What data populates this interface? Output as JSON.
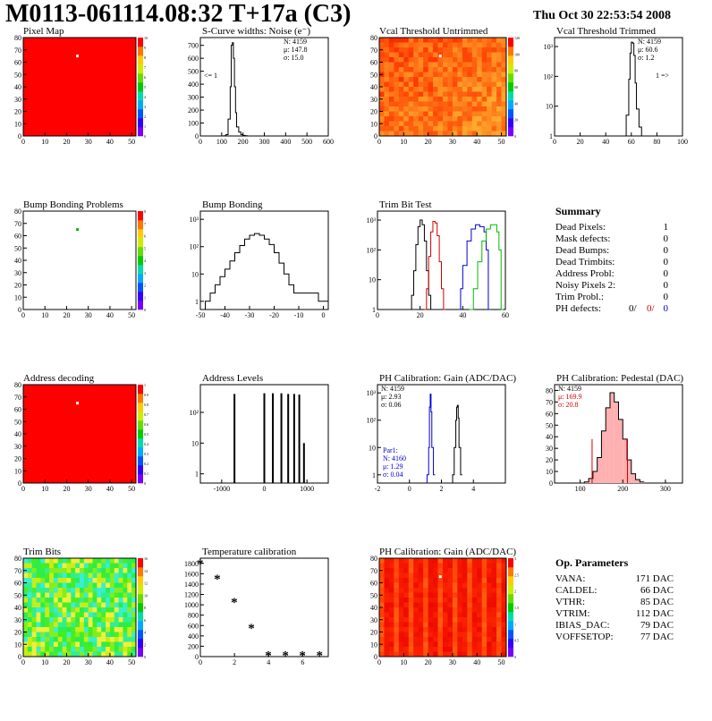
{
  "header": {
    "title": "M0113-061114.08:32 T+17a (C3)",
    "date": "Thu Oct 30 22:53:54 2008"
  },
  "colors": {
    "black": "#000000",
    "red": "#d00000",
    "blue": "#0000cc",
    "green": "#00bb00"
  },
  "panels": {
    "pixel_map": {
      "title": "Pixel Map",
      "palette_labels": [
        "0",
        "1",
        "2",
        "3",
        "4",
        "5",
        "6",
        "7",
        "8",
        "9",
        "10"
      ]
    },
    "scurve": {
      "title": "S-Curve widths: Noise (e⁻)",
      "stats": [
        "N: 4159",
        "μ: 147.8",
        "σ: 15.0"
      ],
      "underflow": "<= 1"
    },
    "vcal_untrimmed": {
      "title": "Vcal Threshold Untrimmed",
      "palette_labels": [
        "0",
        "20",
        "40",
        "60",
        "80",
        "100",
        "120"
      ]
    },
    "vcal_trimmed": {
      "title": "Vcal Threshold Trimmed",
      "stats": [
        "N: 4159",
        "μ: 60.6",
        "σ:  1.2"
      ],
      "overflow": "1 =>"
    },
    "bump_problems": {
      "title": "Bump Bonding Problems",
      "palette_labels": [
        "0",
        "1",
        "2",
        "3",
        "4",
        "5",
        "6",
        "7",
        "8"
      ]
    },
    "bump_bonding": {
      "title": "Bump Bonding"
    },
    "trim_bit": {
      "title": "Trim Bit Test"
    },
    "address_decoding": {
      "title": "Address decoding",
      "palette_labels": [
        "0",
        "0.1",
        "0.2",
        "0.3",
        "0.4",
        "0.5",
        "0.6",
        "0.7",
        "0.8",
        "0.9",
        "1"
      ]
    },
    "address_levels": {
      "title": "Address Levels"
    },
    "ph_gain": {
      "title": "PH Calibration: Gain (ADC/DAC)",
      "stats": [
        "N: 4159",
        "μ: 2.93",
        "σ: 0.06"
      ],
      "par_stats": [
        "Par1:",
        "N: 4160",
        "μ: 1.29",
        "σ: 0.04"
      ]
    },
    "ph_pedestal": {
      "title": "PH Calibration: Pedestal (DAC)",
      "stats": [
        "N: 4159",
        "μ: 169.9",
        "σ: 20.8"
      ]
    },
    "trim_bits": {
      "title": "Trim Bits",
      "palette_labels": [
        "0",
        "2",
        "4",
        "6",
        "8",
        "10",
        "12",
        "14",
        "16"
      ]
    },
    "temperature": {
      "title": "Temperature calibration"
    },
    "ph_gain_map": {
      "title": "PH Calibration: Gain (ADC/DAC)",
      "palette_labels": [
        "0",
        "0.5",
        "1",
        "1.5",
        "2",
        "2.5",
        "3"
      ]
    }
  },
  "summary": {
    "title": "Summary",
    "rows": [
      {
        "label": "Dead Pixels:",
        "value": "1"
      },
      {
        "label": "Mask defects:",
        "value": "0"
      },
      {
        "label": "Dead Bumps:",
        "value": "0"
      },
      {
        "label": "Dead Trimbits:",
        "value": "0"
      },
      {
        "label": "Address Probl:",
        "value": "0"
      },
      {
        "label": "Noisy Pixels 2:",
        "value": "0"
      },
      {
        "label": "Trim Probl.:",
        "value": "0"
      }
    ],
    "ph_label": "PH defects:",
    "ph_values": [
      "0/",
      "0/",
      "0"
    ]
  },
  "parameters": {
    "title": "Op. Parameters",
    "rows": [
      {
        "label": "VANA:",
        "value": "171 DAC"
      },
      {
        "label": "CALDEL:",
        "value": "66 DAC"
      },
      {
        "label": "VTHR:",
        "value": "85 DAC"
      },
      {
        "label": "VTRIM:",
        "value": "112 DAC"
      },
      {
        "label": "IBIAS_DAC:",
        "value": "79 DAC"
      },
      {
        "label": "VOFFSETOP:",
        "value": "77 DAC"
      }
    ]
  },
  "chart_data": [
    {
      "id": "pixel_map",
      "type": "heatmap",
      "title": "Pixel Map",
      "x_ticks": [
        0,
        10,
        20,
        30,
        40,
        50
      ],
      "y_ticks": [
        0,
        10,
        20,
        30,
        40,
        50,
        60,
        70,
        80
      ],
      "xlim": [
        0,
        52
      ],
      "ylim": [
        0,
        80
      ],
      "z_range": [
        0,
        10
      ],
      "fill": "uniform red (all pixels = 10)",
      "markers": [
        {
          "x": 25,
          "y": 65,
          "color": "#ffffff"
        }
      ]
    },
    {
      "id": "scurve",
      "type": "histogram",
      "title": "S-Curve widths: Noise (e⁻)",
      "x_ticks": [
        0,
        100,
        200,
        300,
        400,
        500,
        600
      ],
      "y_ticks": [
        0,
        100,
        200,
        300,
        400,
        500,
        600,
        700
      ],
      "xlim": [
        0,
        600
      ],
      "ylim": [
        0,
        760
      ],
      "x": [
        100,
        110,
        120,
        130,
        140,
        145,
        150,
        155,
        160,
        165,
        170,
        180,
        190,
        200,
        210,
        220
      ],
      "values": [
        0,
        2,
        10,
        130,
        380,
        700,
        720,
        600,
        380,
        180,
        70,
        30,
        10,
        4,
        2,
        0
      ]
    },
    {
      "id": "vcal_untrimmed",
      "type": "heatmap",
      "title": "Vcal Threshold Untrimmed",
      "x_ticks": [
        0,
        10,
        20,
        30,
        40,
        50
      ],
      "y_ticks": [
        0,
        10,
        20,
        30,
        40,
        50,
        60,
        70,
        80
      ],
      "xlim": [
        0,
        52
      ],
      "ylim": [
        0,
        80
      ],
      "z_range": [
        0,
        130
      ],
      "fill": "noisy orange-red, lighter toward upper right",
      "markers": [
        {
          "x": 25,
          "y": 65,
          "color": "#ffffff"
        }
      ]
    },
    {
      "id": "vcal_trimmed",
      "type": "histogram",
      "title": "Vcal Threshold Trimmed",
      "log_y": true,
      "x_ticks": [
        0,
        20,
        40,
        60,
        80,
        100
      ],
      "y_ticks": [
        "1",
        "10",
        "10²",
        "10³"
      ],
      "xlim": [
        0,
        100
      ],
      "ylim": [
        1,
        2000
      ],
      "x": [
        54,
        56,
        58,
        59,
        60,
        61,
        62,
        63,
        64,
        66,
        68
      ],
      "values": [
        1,
        5,
        80,
        600,
        1400,
        1300,
        500,
        60,
        8,
        2,
        1
      ]
    },
    {
      "id": "bump_problems",
      "type": "heatmap",
      "title": "Bump Bonding Problems",
      "x_ticks": [
        0,
        10,
        20,
        30,
        40,
        50
      ],
      "y_ticks": [
        0,
        10,
        20,
        30,
        40,
        50,
        60,
        70,
        80
      ],
      "xlim": [
        0,
        52
      ],
      "ylim": [
        0,
        80
      ],
      "fill": "white",
      "markers": [
        {
          "x": 25,
          "y": 65,
          "color": "#00bb00"
        }
      ]
    },
    {
      "id": "bump_bonding",
      "type": "histogram",
      "title": "Bump Bonding",
      "log_y": true,
      "x_ticks": [
        -50,
        -40,
        -30,
        -20,
        -10,
        0
      ],
      "y_ticks": [
        "1",
        "10",
        "10²",
        "10³"
      ],
      "xlim": [
        -50,
        2
      ],
      "ylim": [
        0.5,
        2000
      ],
      "x": [
        -48,
        -46,
        -44,
        -42,
        -40,
        -38,
        -36,
        -34,
        -32,
        -30,
        -28,
        -26,
        -24,
        -22,
        -20,
        -18,
        -16,
        -14,
        -12,
        -2,
        0
      ],
      "values": [
        1,
        2,
        4,
        8,
        15,
        30,
        60,
        110,
        190,
        260,
        300,
        260,
        190,
        120,
        60,
        25,
        10,
        4,
        2,
        1,
        1
      ]
    },
    {
      "id": "trim_bit",
      "type": "line",
      "title": "Trim Bit Test",
      "log_y": true,
      "x_ticks": [
        0,
        20,
        40,
        60
      ],
      "y_ticks": [
        "1",
        "10",
        "10²",
        "10³"
      ],
      "xlim": [
        0,
        60
      ],
      "ylim": [
        1,
        2000
      ],
      "series": [
        {
          "color": "#000000",
          "x": [
            15,
            16,
            17,
            18,
            19,
            20,
            21,
            22,
            23,
            24,
            25
          ],
          "values": [
            1,
            3,
            20,
            150,
            600,
            1000,
            700,
            200,
            20,
            3,
            1
          ]
        },
        {
          "color": "#d00000",
          "x": [
            22,
            23,
            24,
            25,
            26,
            27,
            28,
            29,
            30,
            31
          ],
          "values": [
            1,
            5,
            60,
            400,
            900,
            800,
            300,
            40,
            5,
            1
          ]
        },
        {
          "color": "#0000cc",
          "x": [
            38,
            39,
            40,
            42,
            44,
            46,
            48,
            50,
            51,
            52
          ],
          "values": [
            1,
            5,
            30,
            200,
            500,
            700,
            600,
            400,
            100,
            1
          ]
        },
        {
          "color": "#00bb00",
          "x": [
            43,
            45,
            47,
            49,
            51,
            53,
            55,
            56,
            57,
            58
          ],
          "values": [
            1,
            5,
            40,
            200,
            500,
            700,
            700,
            400,
            100,
            1
          ]
        }
      ]
    },
    {
      "id": "address_decoding",
      "type": "heatmap",
      "title": "Address decoding",
      "x_ticks": [
        0,
        10,
        20,
        30,
        40,
        50
      ],
      "y_ticks": [
        0,
        10,
        20,
        30,
        40,
        50,
        60,
        70,
        80
      ],
      "xlim": [
        0,
        52
      ],
      "ylim": [
        0,
        80
      ],
      "z_range": [
        0,
        1
      ],
      "fill": "uniform red (all pixels = 1)",
      "markers": [
        {
          "x": 25,
          "y": 65,
          "color": "#ffffff"
        }
      ]
    },
    {
      "id": "address_levels",
      "type": "histogram",
      "title": "Address Levels",
      "log_y": true,
      "x_ticks": [
        -1000,
        0,
        1000
      ],
      "y_ticks": [
        "1",
        "10",
        "10²"
      ],
      "xlim": [
        -1500,
        1500
      ],
      "ylim": [
        0.5,
        800
      ],
      "x": [
        -700,
        0,
        200,
        400,
        560,
        700,
        820,
        930
      ],
      "values": [
        400,
        420,
        420,
        420,
        400,
        400,
        380,
        10
      ]
    },
    {
      "id": "ph_gain",
      "type": "histogram",
      "title": "PH Calibration: Gain (ADC/DAC)",
      "log_y": true,
      "x_ticks": [
        -2,
        0,
        2,
        4
      ],
      "y_ticks": [
        "1",
        "10",
        "10²",
        "10³"
      ],
      "xlim": [
        -2,
        6
      ],
      "ylim": [
        0.5,
        2000
      ],
      "series": [
        {
          "color": "#0000cc",
          "x": [
            1.1,
            1.2,
            1.25,
            1.3,
            1.35,
            1.4,
            1.5
          ],
          "values": [
            1,
            10,
            300,
            900,
            200,
            10,
            1
          ]
        },
        {
          "color": "#000000",
          "x": [
            2.7,
            2.8,
            2.9,
            2.95,
            3.0,
            3.05,
            3.1,
            3.2
          ],
          "values": [
            1,
            10,
            100,
            300,
            350,
            120,
            10,
            1
          ]
        }
      ]
    },
    {
      "id": "ph_pedestal",
      "type": "histogram",
      "title": "PH Calibration: Pedestal (DAC)",
      "x_ticks": [
        100,
        200,
        300
      ],
      "y_ticks": [
        0,
        10,
        20,
        30,
        40,
        50,
        60,
        70,
        80
      ],
      "xlim": [
        40,
        340
      ],
      "ylim": [
        0,
        85
      ],
      "x": [
        110,
        120,
        130,
        140,
        150,
        160,
        170,
        180,
        190,
        200,
        210,
        220,
        230,
        240
      ],
      "values": [
        1,
        4,
        10,
        22,
        45,
        65,
        78,
        70,
        55,
        38,
        20,
        8,
        3,
        1
      ],
      "fit_lines": [
        128,
        211
      ]
    },
    {
      "id": "trim_bits",
      "type": "heatmap",
      "title": "Trim Bits",
      "x_ticks": [
        0,
        10,
        20,
        30,
        40,
        50
      ],
      "y_ticks": [
        0,
        10,
        20,
        30,
        40,
        50,
        60,
        70,
        80
      ],
      "xlim": [
        0,
        52
      ],
      "ylim": [
        0,
        80
      ],
      "z_range": [
        0,
        16
      ],
      "fill": "noisy green/yellow/cyan"
    },
    {
      "id": "temperature",
      "type": "scatter",
      "title": "Temperature calibration",
      "x_ticks": [
        0,
        2,
        4,
        6
      ],
      "y_ticks": [
        0,
        200,
        400,
        600,
        800,
        1000,
        1200,
        1400,
        1600,
        1800
      ],
      "xlim": [
        0,
        7.5
      ],
      "ylim": [
        0,
        1900
      ],
      "x": [
        0,
        1,
        2,
        3,
        4,
        5,
        6,
        7
      ],
      "values": [
        1800,
        1500,
        1050,
        550,
        30,
        30,
        30,
        30
      ]
    },
    {
      "id": "ph_gain_map",
      "type": "heatmap",
      "title": "PH Calibration: Gain (ADC/DAC)",
      "x_ticks": [
        0,
        10,
        20,
        30,
        40,
        50
      ],
      "y_ticks": [
        0,
        10,
        20,
        30,
        40,
        50,
        60,
        70,
        80
      ],
      "xlim": [
        0,
        52
      ],
      "ylim": [
        0,
        80
      ],
      "z_range": [
        0,
        3.2
      ],
      "fill": "noisy red/orange vertical bands",
      "markers": [
        {
          "x": 25,
          "y": 65,
          "color": "#ffffff"
        }
      ]
    }
  ]
}
